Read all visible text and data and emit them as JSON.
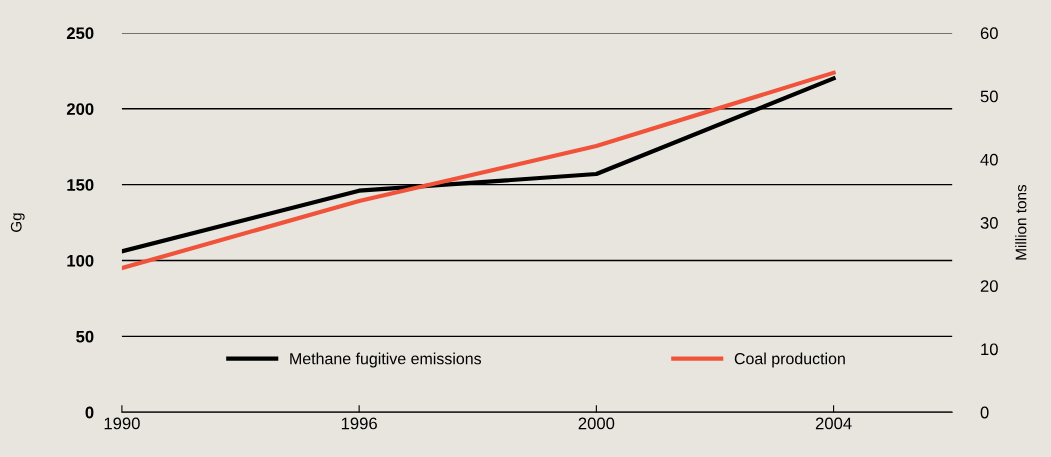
{
  "chart_data": {
    "type": "line",
    "categories": [
      "1990",
      "1996",
      "2000",
      "2004"
    ],
    "series": [
      {
        "name": "Methane fugitive emissions",
        "color": "#000000",
        "values": [
          106,
          146,
          157,
          220
        ]
      },
      {
        "name": "Coal production",
        "color": "#f0533a",
        "values": [
          22.8,
          33.4,
          42.1,
          53.7
        ],
        "axis": "y2"
      }
    ],
    "ylabel": "Gg",
    "y2label": "Million tons",
    "ylim": [
      0,
      250
    ],
    "yticks": [
      0,
      50,
      100,
      150,
      200,
      250
    ],
    "y2lim": [
      0,
      60
    ],
    "y2ticks": [
      0,
      10,
      20,
      30,
      40,
      50,
      60
    ],
    "grid": "y",
    "legend": "bottom",
    "marker": "none",
    "line_style": "solid"
  }
}
